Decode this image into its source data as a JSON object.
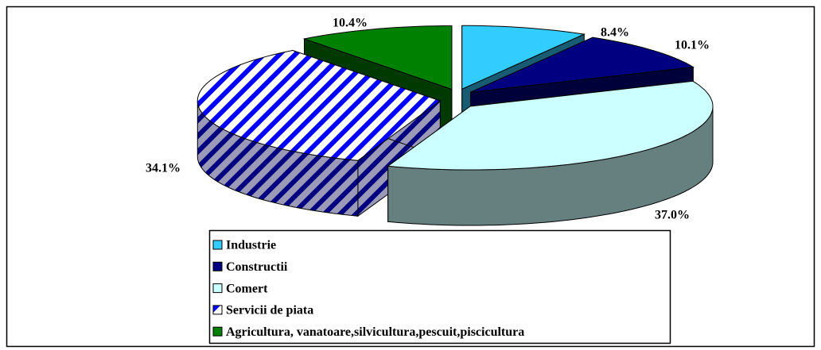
{
  "chart_data": {
    "type": "pie3d",
    "categories": [
      "Industrie",
      "Constructii",
      "Comert",
      "Servicii de piata",
      "Agricultura, vanatoare,silvicultura,pescuit,piscicultura"
    ],
    "values": [
      8.4,
      10.1,
      37.0,
      34.1,
      10.4
    ],
    "value_labels": [
      "8.4%",
      "10.1%",
      "37.0%",
      "34.1%",
      "10.4%"
    ],
    "colors": [
      "#33ccff",
      "#000080",
      "#ccffff",
      "#0000ff",
      "#008000"
    ],
    "hatched": [
      false,
      false,
      false,
      true,
      false
    ],
    "legend": "bottom"
  }
}
